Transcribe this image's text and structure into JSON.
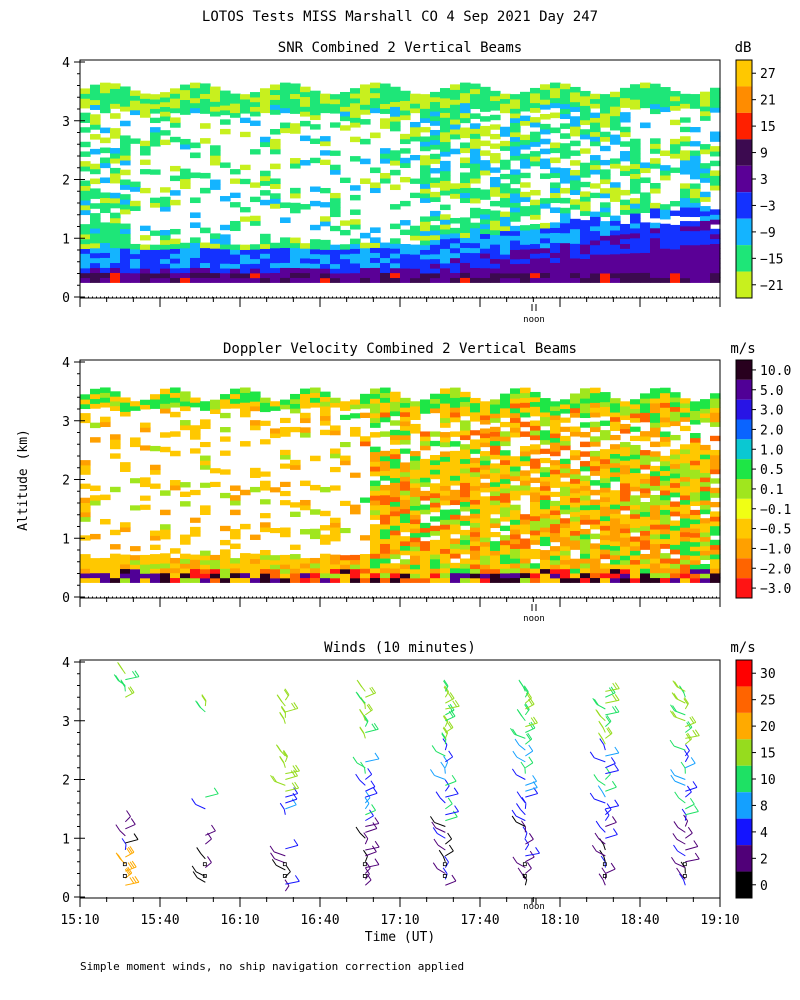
{
  "figure": {
    "title": "LOTOS Tests MISS Marshall CO   4 Sep 2021 Day 247",
    "ylabel": "Altitude (km)",
    "xlabel": "Time (UT)",
    "footnote": "Simple moment winds, no ship navigation correction applied",
    "noon_label": "noon"
  },
  "chart_data": [
    {
      "type": "heatmap",
      "title": "SNR Combined 2 Vertical Beams",
      "unit": "dB",
      "ylim": [
        0,
        4
      ],
      "yticks": [
        "0",
        "1",
        "2",
        "3",
        "4"
      ],
      "x_time_range": [
        "15:10",
        "19:10"
      ],
      "colorbar": {
        "labels": [
          "27",
          "21",
          "15",
          "9",
          "3",
          "−3",
          "−9",
          "−15",
          "−21"
        ],
        "colors": [
          "#ffc800",
          "#ff8c00",
          "#ff2000",
          "#3c0a50",
          "#5a0096",
          "#1432ff",
          "#14b4ff",
          "#1ee678",
          "#c8f01e"
        ]
      }
    },
    {
      "type": "heatmap",
      "title": "Doppler Velocity Combined 2 Vertical Beams",
      "unit": "m/s",
      "ylim": [
        0,
        4
      ],
      "yticks": [
        "0",
        "1",
        "2",
        "3",
        "4"
      ],
      "x_time_range": [
        "15:10",
        "19:10"
      ],
      "colorbar": {
        "labels": [
          "10.0",
          "5.0",
          "3.0",
          "2.0",
          "1.0",
          "0.5",
          "0.1",
          "−0.1",
          "−0.5",
          "−1.0",
          "−2.0",
          "−3.0"
        ],
        "colors": [
          "#28001e",
          "#500096",
          "#2814e6",
          "#0a64ff",
          "#0ac8d2",
          "#1ee646",
          "#a0e61e",
          "#f0ff14",
          "#ffc800",
          "#ffa000",
          "#ff6400",
          "#ff1414"
        ]
      }
    },
    {
      "type": "scatter",
      "title": "Winds (10 minutes)",
      "unit": "m/s",
      "ylim": [
        0,
        4
      ],
      "yticks": [
        "0",
        "1",
        "2",
        "3",
        "4"
      ],
      "xticks": [
        "15:10",
        "15:40",
        "16:10",
        "16:40",
        "17:10",
        "17:40",
        "18:10",
        "18:40",
        "19:10"
      ],
      "colorbar": {
        "labels": [
          "30",
          "25",
          "20",
          "15",
          "10",
          "8",
          "4",
          "2",
          "0"
        ],
        "colors": [
          "#ff0000",
          "#ff6400",
          "#ffaa00",
          "#96dc1e",
          "#1ee164",
          "#14a0ff",
          "#1414ff",
          "#500078",
          "#000000"
        ]
      },
      "profile_times_hours": [
        15.45,
        15.95,
        16.45,
        16.95,
        17.45,
        17.95,
        18.45,
        18.95
      ]
    }
  ]
}
